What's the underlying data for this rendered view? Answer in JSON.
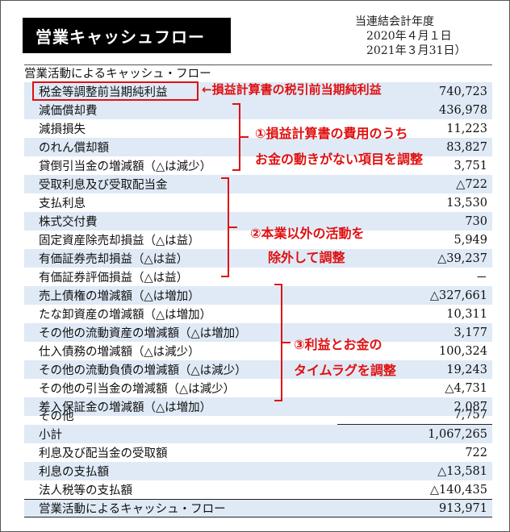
{
  "title": "営業キャッシュフロー",
  "period": {
    "line1": "当連結会計年度",
    "line2": "2020年４月１日",
    "line3": "2021年３月31日）"
  },
  "section_header": "営業活動によるキャッシュ・フロー",
  "rows": [
    {
      "label": "税金等調整前当期純利益",
      "value": "740,723"
    },
    {
      "label": "減価償却費",
      "value": "436,978"
    },
    {
      "label": "減損損失",
      "value": "11,223"
    },
    {
      "label": "のれん償却額",
      "value": "83,827"
    },
    {
      "label": "貸倒引当金の増減額（△は減少）",
      "value": "3,751"
    },
    {
      "label": "受取利息及び受取配当金",
      "value": "△722"
    },
    {
      "label": "支払利息",
      "value": "13,530"
    },
    {
      "label": "株式交付費",
      "value": "730"
    },
    {
      "label": "固定資産除売却損益（△は益）",
      "value": "5,949"
    },
    {
      "label": "有価証券売却損益（△は益）",
      "value": "△39,237"
    },
    {
      "label": "有価証券評価損益（△は益）",
      "value": "－"
    },
    {
      "label": "売上債権の増減額（△は増加）",
      "value": "△327,661"
    },
    {
      "label": "たな卸資産の増減額（△は増加）",
      "value": "10,311"
    },
    {
      "label": "その他の流動資産の増減額（△は増加）",
      "value": "3,177"
    },
    {
      "label": "仕入債務の増減額（△は減少）",
      "value": "100,324"
    },
    {
      "label": "その他の流動負債の増減額（△は減少）",
      "value": "19,243"
    },
    {
      "label": "その他の引当金の増減額（△は減少）",
      "value": "△4,731"
    },
    {
      "label": "差入保証金の増減額（△は増加）",
      "value": "2,087"
    },
    {
      "label": "その他",
      "value": "7,757"
    },
    {
      "label": "小計",
      "value": "1,067,265"
    },
    {
      "label": "利息及び配当金の受取額",
      "value": "722"
    },
    {
      "label": "利息の支払額",
      "value": "△13,581"
    },
    {
      "label": "法人税等の支払額",
      "value": "△140,435"
    },
    {
      "label": "営業活動によるキャッシュ・フロー",
      "value": "913,971"
    }
  ],
  "annotations": {
    "pretax_note": "←損益計算書の税引前当期純利益",
    "note1_line1": "①損益計算書の費用のうち",
    "note1_line2": "お金の動きがない項目を調整",
    "note2_line1": "②本業以外の活動を",
    "note2_line2": "除外して調整",
    "note3_line1": "③利益とお金の",
    "note3_line2": "タイムラグを調整"
  },
  "colors": {
    "row_highlight": "#dfeaf6",
    "annotation_red": "#e01010"
  }
}
